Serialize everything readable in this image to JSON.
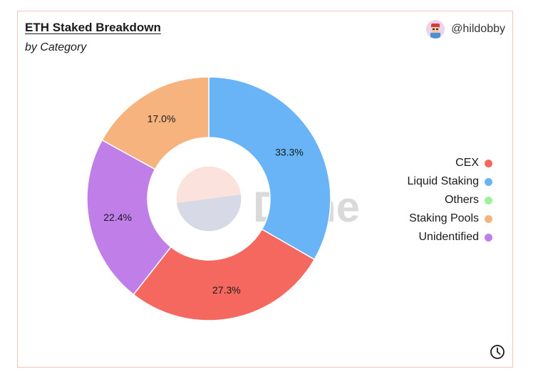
{
  "header": {
    "title": "ETH Staked Breakdown",
    "subtitle": "by Category",
    "author": "@hildobby"
  },
  "watermark": "Dune",
  "icons": {
    "avatar": "avatar-icon",
    "refresh": "clock-icon"
  },
  "chart_data": {
    "type": "pie",
    "donut": true,
    "title": "ETH Staked Breakdown",
    "subtitle": "by Category",
    "legend_position": "right",
    "slices": [
      {
        "name": "Liquid Staking",
        "value": 33.3,
        "label": "33.3%",
        "color": "#69b3f7"
      },
      {
        "name": "CEX",
        "value": 27.3,
        "label": "27.3%",
        "color": "#f4685f"
      },
      {
        "name": "Unidentified",
        "value": 22.4,
        "label": "22.4%",
        "color": "#c07ee8"
      },
      {
        "name": "Staking Pools",
        "value": 17.0,
        "label": "17.0%",
        "color": "#f7b37e"
      },
      {
        "name": "Others",
        "value": 0.0,
        "label": "",
        "color": "#9ff29a"
      }
    ],
    "legend": [
      {
        "name": "CEX",
        "color": "#f4685f"
      },
      {
        "name": "Liquid Staking",
        "color": "#69b3f7"
      },
      {
        "name": "Others",
        "color": "#9ff29a"
      },
      {
        "name": "Staking Pools",
        "color": "#f7b37e"
      },
      {
        "name": "Unidentified",
        "color": "#c07ee8"
      }
    ]
  }
}
